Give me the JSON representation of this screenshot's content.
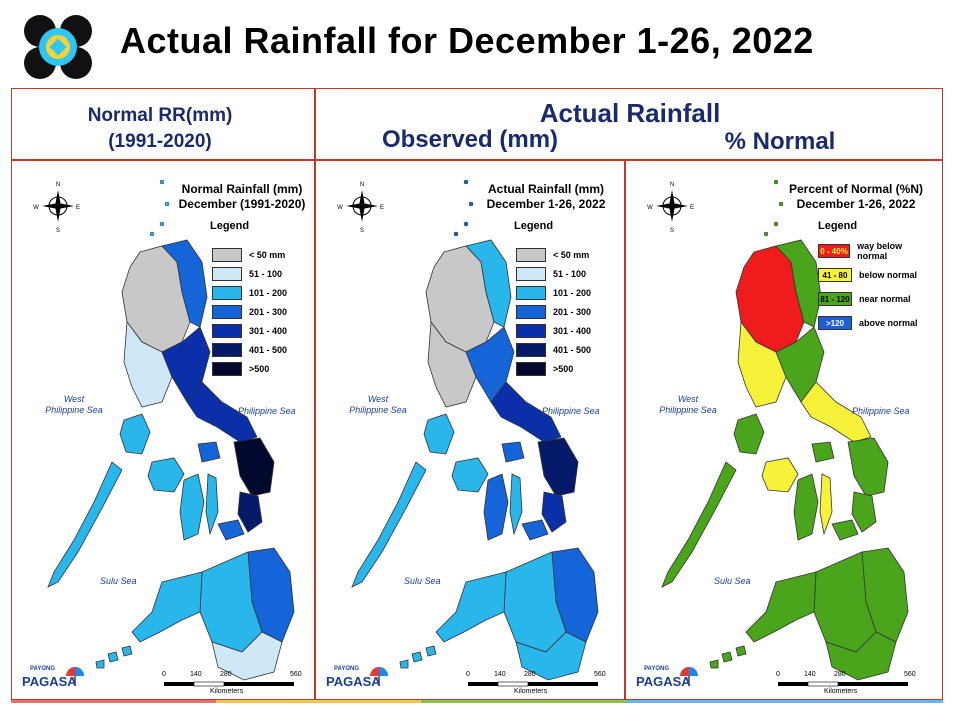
{
  "title": "Actual Rainfall for December 1-26, 2022",
  "headers": {
    "normal": "Normal RR(mm)",
    "normal_period": "(1991-2020)",
    "actual": "Actual Rainfall",
    "observed": "Observed (mm)",
    "percent": "% Normal"
  },
  "panels": [
    {
      "title_line1": "Normal Rainfall (mm)",
      "title_line2": "December (1991-2020)",
      "legend_title": "Legend",
      "legend": [
        {
          "label": "< 50 mm",
          "color": "#c8c8c8"
        },
        {
          "label": "51 - 100",
          "color": "#cfe8f7"
        },
        {
          "label": "101 - 200",
          "color": "#29b6ea"
        },
        {
          "label": "201 - 300",
          "color": "#1565d8"
        },
        {
          "label": "301 - 400",
          "color": "#0a2fa8"
        },
        {
          "label": "401 - 500",
          "color": "#061a6a"
        },
        {
          "label": ">500",
          "color": "#02082e"
        }
      ]
    },
    {
      "title_line1": "Actual Rainfall (mm)",
      "title_line2": "December 1-26, 2022",
      "legend_title": "Legend",
      "legend": [
        {
          "label": "< 50 mm",
          "color": "#c8c8c8"
        },
        {
          "label": "51 - 100",
          "color": "#cfe8f7"
        },
        {
          "label": "101 - 200",
          "color": "#29b6ea"
        },
        {
          "label": "201 - 300",
          "color": "#1565d8"
        },
        {
          "label": "301 - 400",
          "color": "#0a2fa8"
        },
        {
          "label": "401 - 500",
          "color": "#061a6a"
        },
        {
          "label": ">500",
          "color": "#02082e"
        }
      ]
    },
    {
      "title_line1": "Percent of Normal (%N)",
      "title_line2": "December 1-26, 2022",
      "legend_title": "Legend",
      "legend": [
        {
          "swatch": "0 - 40%",
          "label": "way below normal",
          "color": "#ee1c1c"
        },
        {
          "swatch": "41 - 80",
          "label": "below normal",
          "color": "#f6f23a"
        },
        {
          "swatch": "81 - 120",
          "label": "near normal",
          "color": "#4aa51c"
        },
        {
          "swatch": ">120",
          "label": "above normal",
          "color": "#1f5fd6"
        }
      ]
    }
  ],
  "seas": {
    "west_line1": "West",
    "west_line2": "Philippine Sea",
    "east": "Philippine Sea",
    "sulu": "Sulu Sea"
  },
  "scale": {
    "ticks": [
      "0",
      "140",
      "280",
      "560"
    ],
    "unit": "Kilometers"
  },
  "compass": {
    "n": "N",
    "s": "S",
    "e": "E",
    "w": "W"
  },
  "branding": {
    "pagasa": "PAGASA",
    "payong": "PAYONG"
  },
  "colors": {
    "header_text": "#1a2a6c",
    "frame": "#c0392b"
  }
}
